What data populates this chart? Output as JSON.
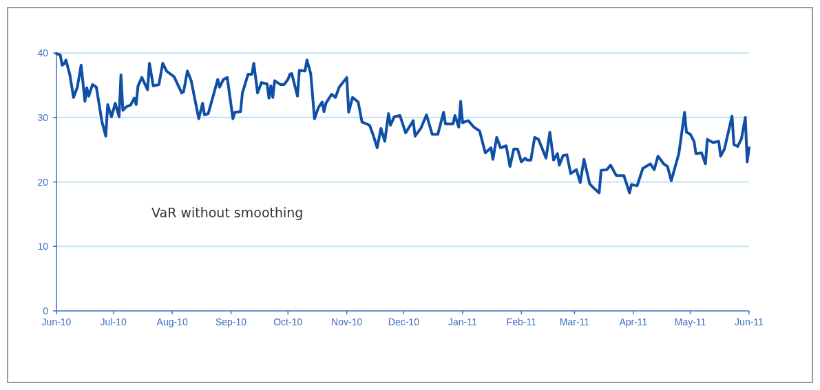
{
  "chart_data": {
    "type": "line",
    "annotations": [
      "VaR without smoothing"
    ],
    "xlim": [
      "2010-06-01",
      "2011-06-01"
    ],
    "xticks": [
      {
        "value": "2010-06-01",
        "label": "Jun-10"
      },
      {
        "value": "2010-07-01",
        "label": "Jul-10"
      },
      {
        "value": "2010-08-01",
        "label": "Aug-10"
      },
      {
        "value": "2010-09-01",
        "label": "Sep-10"
      },
      {
        "value": "2010-10-01",
        "label": "Oct-10"
      },
      {
        "value": "2010-11-01",
        "label": "Nov-10"
      },
      {
        "value": "2010-12-01",
        "label": "Dec-10"
      },
      {
        "value": "2011-01-01",
        "label": "Jan-11"
      },
      {
        "value": "2011-02-01",
        "label": "Feb-11"
      },
      {
        "value": "2011-03-01",
        "label": "Mar-11"
      },
      {
        "value": "2011-04-01",
        "label": "Apr-11"
      },
      {
        "value": "2011-05-01",
        "label": "May-11"
      },
      {
        "value": "2011-06-01",
        "label": "Jun-11"
      }
    ],
    "ylim": [
      0,
      40
    ],
    "yticks": [
      0,
      10,
      20,
      30,
      40
    ],
    "grid": "y",
    "line_style": "solid",
    "x": [
      "2010-06-01",
      "2010-06-03",
      "2010-06-04",
      "2010-06-05",
      "2010-06-06",
      "2010-06-08",
      "2010-06-10",
      "2010-06-12",
      "2010-06-14",
      "2010-06-16",
      "2010-06-17",
      "2010-06-18",
      "2010-06-20",
      "2010-06-22",
      "2010-06-25",
      "2010-06-27",
      "2010-06-28",
      "2010-06-30",
      "2010-07-02",
      "2010-07-04",
      "2010-07-05",
      "2010-07-06",
      "2010-07-08",
      "2010-07-10",
      "2010-07-12",
      "2010-07-13",
      "2010-07-14",
      "2010-07-16",
      "2010-07-19",
      "2010-07-20",
      "2010-07-22",
      "2010-07-25",
      "2010-07-27",
      "2010-07-29",
      "2010-08-02",
      "2010-08-06",
      "2010-08-07",
      "2010-08-09",
      "2010-08-11",
      "2010-08-15",
      "2010-08-17",
      "2010-08-18",
      "2010-08-20",
      "2010-08-25",
      "2010-08-26",
      "2010-08-28",
      "2010-08-30",
      "2010-09-02",
      "2010-09-03",
      "2010-09-06",
      "2010-09-07",
      "2010-09-10",
      "2010-09-12",
      "2010-09-13",
      "2010-09-15",
      "2010-09-17",
      "2010-09-20",
      "2010-09-21",
      "2010-09-22",
      "2010-09-23",
      "2010-09-24",
      "2010-09-27",
      "2010-09-29",
      "2010-10-01",
      "2010-10-02",
      "2010-10-03",
      "2010-10-06",
      "2010-10-07",
      "2010-10-10",
      "2010-10-11",
      "2010-10-13",
      "2010-10-15",
      "2010-10-17",
      "2010-10-19",
      "2010-10-20",
      "2010-10-21",
      "2010-10-24",
      "2010-10-26",
      "2010-10-28",
      "2010-11-01",
      "2010-11-02",
      "2010-11-04",
      "2010-11-07",
      "2010-11-09",
      "2010-11-13",
      "2010-11-15",
      "2010-11-17",
      "2010-11-19",
      "2010-11-21",
      "2010-11-23",
      "2010-11-24",
      "2010-11-26",
      "2010-11-29",
      "2010-12-02",
      "2010-12-06",
      "2010-12-07",
      "2010-12-10",
      "2010-12-13",
      "2010-12-16",
      "2010-12-19",
      "2010-12-22",
      "2010-12-23",
      "2010-12-27",
      "2010-12-28",
      "2010-12-30",
      "2010-12-31",
      "2011-01-01",
      "2011-01-04",
      "2011-01-07",
      "2011-01-10",
      "2011-01-13",
      "2011-01-16",
      "2011-01-17",
      "2011-01-19",
      "2011-01-21",
      "2011-01-24",
      "2011-01-26",
      "2011-01-28",
      "2011-01-30",
      "2011-02-01",
      "2011-02-03",
      "2011-02-04",
      "2011-02-06",
      "2011-02-08",
      "2011-02-10",
      "2011-02-14",
      "2011-02-16",
      "2011-02-18",
      "2011-02-20",
      "2011-02-21",
      "2011-02-23",
      "2011-02-25",
      "2011-02-27",
      "2011-03-02",
      "2011-03-04",
      "2011-03-06",
      "2011-03-09",
      "2011-03-11",
      "2011-03-14",
      "2011-03-15",
      "2011-03-18",
      "2011-03-20",
      "2011-03-23",
      "2011-03-27",
      "2011-03-30",
      "2011-03-31",
      "2011-04-03",
      "2011-04-06",
      "2011-04-10",
      "2011-04-12",
      "2011-04-14",
      "2011-04-17",
      "2011-04-19",
      "2011-04-21",
      "2011-04-25",
      "2011-04-28",
      "2011-04-29",
      "2011-05-01",
      "2011-05-03",
      "2011-05-04",
      "2011-05-07",
      "2011-05-09",
      "2011-05-10",
      "2011-05-13",
      "2011-05-16",
      "2011-05-17",
      "2011-05-19",
      "2011-05-23",
      "2011-05-24",
      "2011-05-26",
      "2011-05-28",
      "2011-05-30",
      "2011-05-31",
      "2011-06-01"
    ],
    "series": [
      {
        "color": "#0f4fa6",
        "values": [
          39.9,
          39.7,
          38.1,
          38.3,
          38.9,
          36.7,
          33.1,
          34.7,
          38.1,
          32.5,
          34.6,
          33.3,
          35.1,
          34.7,
          29.3,
          27.1,
          32.0,
          30.1,
          32.2,
          30.1,
          36.6,
          31.1,
          31.7,
          31.9,
          33.0,
          32.0,
          34.9,
          36.2,
          34.3,
          38.4,
          34.9,
          35.1,
          38.4,
          37.2,
          36.3,
          33.8,
          34.0,
          37.2,
          35.7,
          29.8,
          32.2,
          30.4,
          30.6,
          35.9,
          34.7,
          35.9,
          36.2,
          29.8,
          30.8,
          30.9,
          33.8,
          36.7,
          36.7,
          38.4,
          33.8,
          35.4,
          35.2,
          33.0,
          34.9,
          33.1,
          35.7,
          35.1,
          35.1,
          35.9,
          36.7,
          36.8,
          33.3,
          37.3,
          37.2,
          38.9,
          36.8,
          29.8,
          31.5,
          32.4,
          30.9,
          32.2,
          33.6,
          33.1,
          34.7,
          36.2,
          30.8,
          33.1,
          32.4,
          29.3,
          28.8,
          27.2,
          25.3,
          28.3,
          26.3,
          30.6,
          28.8,
          30.1,
          30.3,
          27.6,
          29.5,
          27.1,
          28.3,
          30.4,
          27.4,
          27.4,
          30.8,
          29.0,
          29.0,
          30.3,
          28.5,
          32.5,
          29.2,
          29.5,
          28.5,
          27.9,
          24.5,
          25.3,
          23.5,
          26.9,
          25.3,
          25.6,
          22.4,
          25.1,
          25.1,
          23.1,
          23.7,
          23.4,
          23.4,
          26.9,
          26.6,
          23.7,
          27.7,
          23.4,
          24.4,
          22.6,
          24.1,
          24.2,
          21.3,
          21.9,
          19.9,
          23.5,
          19.7,
          19.1,
          18.3,
          21.8,
          21.9,
          22.6,
          21.0,
          21.0,
          18.3,
          19.6,
          19.4,
          22.1,
          22.8,
          21.9,
          24.0,
          22.8,
          22.4,
          20.2,
          24.4,
          30.8,
          27.7,
          27.4,
          26.3,
          24.4,
          24.5,
          22.8,
          26.6,
          26.1,
          26.3,
          24.0,
          25.1,
          30.2,
          25.8,
          25.5,
          26.7,
          30.0,
          23.1,
          25.3
        ]
      }
    ]
  }
}
